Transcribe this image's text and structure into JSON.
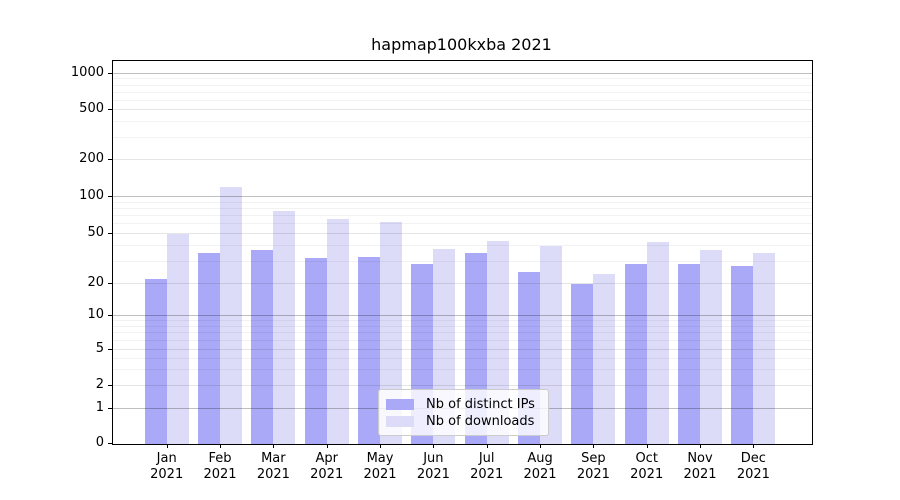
{
  "chart_data": {
    "type": "bar",
    "title": "hapmap100kxba 2021",
    "categories": [
      "Jan 2021",
      "Feb 2021",
      "Mar 2021",
      "Apr 2021",
      "May 2021",
      "Jun 2021",
      "Jul 2021",
      "Aug 2021",
      "Sep 2021",
      "Oct 2021",
      "Nov 2021",
      "Dec 2021"
    ],
    "series": [
      {
        "name": "Nb of distinct IPs",
        "color": "#a9a9f7",
        "values": [
          22,
          35,
          37,
          32,
          33,
          29,
          35,
          25,
          20,
          29,
          29,
          28
        ]
      },
      {
        "name": "Nb of downloads",
        "color": "#dcdcf8",
        "values": [
          50,
          120,
          77,
          66,
          63,
          38,
          44,
          40,
          24,
          43,
          37,
          35
        ]
      }
    ],
    "xlabel": "",
    "ylabel": "",
    "yscale": "symlog",
    "yticks": [
      0,
      1,
      2,
      5,
      10,
      20,
      50,
      100,
      200,
      500,
      1000
    ],
    "ylim": [
      0,
      1270
    ],
    "grid": true,
    "legend_position": "inside-bottom-center"
  },
  "colors": {
    "background": "#ffffff",
    "spine": "#000000",
    "series_distinct_ips": "#a9a9f7",
    "series_downloads": "#dcdcf8"
  }
}
